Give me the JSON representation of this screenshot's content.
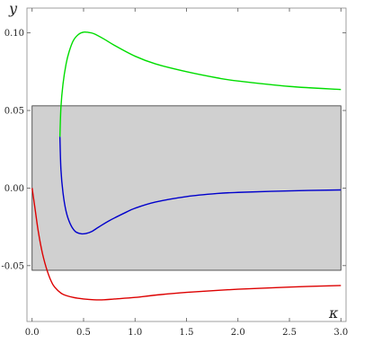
{
  "chart_data": {
    "type": "line",
    "xlabel": "κ",
    "ylabel": "y",
    "xlim": [
      -0.05,
      3.05
    ],
    "ylim": [
      -0.086,
      0.116
    ],
    "x_ticks": [
      0.0,
      0.5,
      1.0,
      1.5,
      2.0,
      2.5,
      3.0
    ],
    "x_tick_labels": [
      "0.0",
      "0.5",
      "1.0",
      "1.5",
      "2.0",
      "2.5",
      "3.0"
    ],
    "y_ticks": [
      -0.05,
      0.0,
      0.05,
      0.1
    ],
    "y_tick_labels": [
      "-0.05",
      "0.00",
      "0.05",
      "0.10"
    ],
    "shaded_band": {
      "y_min": -0.053,
      "y_max": 0.053,
      "x_min": 0.0,
      "x_max": 3.0,
      "color": "#d0d0d0"
    },
    "series": [
      {
        "color": "#00dd00",
        "x": [
          0.27,
          0.28,
          0.3,
          0.33,
          0.36,
          0.4,
          0.45,
          0.5,
          0.55,
          0.6,
          0.7,
          0.8,
          1.0,
          1.2,
          1.5,
          1.8,
          2.0,
          2.5,
          3.0
        ],
        "y": [
          0.033,
          0.052,
          0.067,
          0.08,
          0.088,
          0.095,
          0.099,
          0.1005,
          0.1003,
          0.0995,
          0.096,
          0.092,
          0.085,
          0.08,
          0.075,
          0.071,
          0.069,
          0.0655,
          0.0635
        ]
      },
      {
        "color": "#0000cc",
        "x": [
          0.27,
          0.28,
          0.3,
          0.33,
          0.37,
          0.42,
          0.48,
          0.53,
          0.58,
          0.65,
          0.75,
          0.9,
          1.0,
          1.2,
          1.5,
          1.8,
          2.0,
          2.5,
          3.0
        ],
        "y": [
          0.033,
          0.012,
          -0.003,
          -0.015,
          -0.023,
          -0.028,
          -0.0295,
          -0.0292,
          -0.028,
          -0.025,
          -0.021,
          -0.016,
          -0.013,
          -0.009,
          -0.0055,
          -0.0035,
          -0.0028,
          -0.0018,
          -0.0012
        ]
      },
      {
        "color": "#dd0000",
        "x": [
          0.0,
          0.03,
          0.06,
          0.1,
          0.15,
          0.2,
          0.25,
          0.3,
          0.4,
          0.5,
          0.6,
          0.7,
          0.8,
          1.0,
          1.2,
          1.5,
          2.0,
          2.5,
          3.0
        ],
        "y": [
          0.0,
          -0.014,
          -0.028,
          -0.042,
          -0.054,
          -0.062,
          -0.066,
          -0.0685,
          -0.0705,
          -0.0715,
          -0.072,
          -0.072,
          -0.0715,
          -0.0705,
          -0.069,
          -0.0672,
          -0.0652,
          -0.0638,
          -0.0628
        ]
      }
    ]
  }
}
